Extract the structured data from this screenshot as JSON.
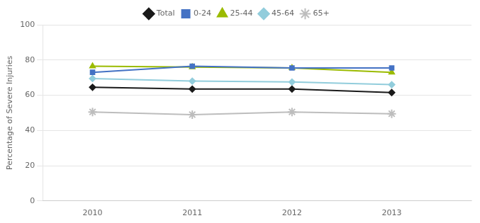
{
  "chart_data": {
    "type": "line",
    "x": [
      2010,
      2011,
      2012,
      2013
    ],
    "series": [
      {
        "name": "Total",
        "color": "#1a1a1a",
        "marker": "diamond",
        "values": [
          64.5,
          63.5,
          63.5,
          61.5
        ]
      },
      {
        "name": "0-24",
        "color": "#4472C4",
        "marker": "square",
        "values": [
          73.0,
          76.5,
          75.5,
          75.5
        ]
      },
      {
        "name": "25-44",
        "color": "#9BBB00",
        "marker": "triangle",
        "values": [
          76.5,
          76.0,
          75.5,
          73.0
        ]
      },
      {
        "name": "45-64",
        "color": "#92CDDC",
        "marker": "diamond",
        "values": [
          69.5,
          68.0,
          67.5,
          66.0
        ]
      },
      {
        "name": "65+",
        "color": "#BDBDBD",
        "marker": "star",
        "values": [
          50.5,
          49.0,
          50.5,
          49.5
        ]
      }
    ],
    "y_label": "Percentage of Severe Injuries",
    "xlim": [
      2009.5,
      2013.8
    ],
    "xticks": [
      2010,
      2011,
      2012,
      2013
    ],
    "ylim": [
      0,
      100
    ],
    "yticks": [
      0,
      20,
      40,
      60,
      80,
      100
    ],
    "grid": "y",
    "legend": "top"
  }
}
